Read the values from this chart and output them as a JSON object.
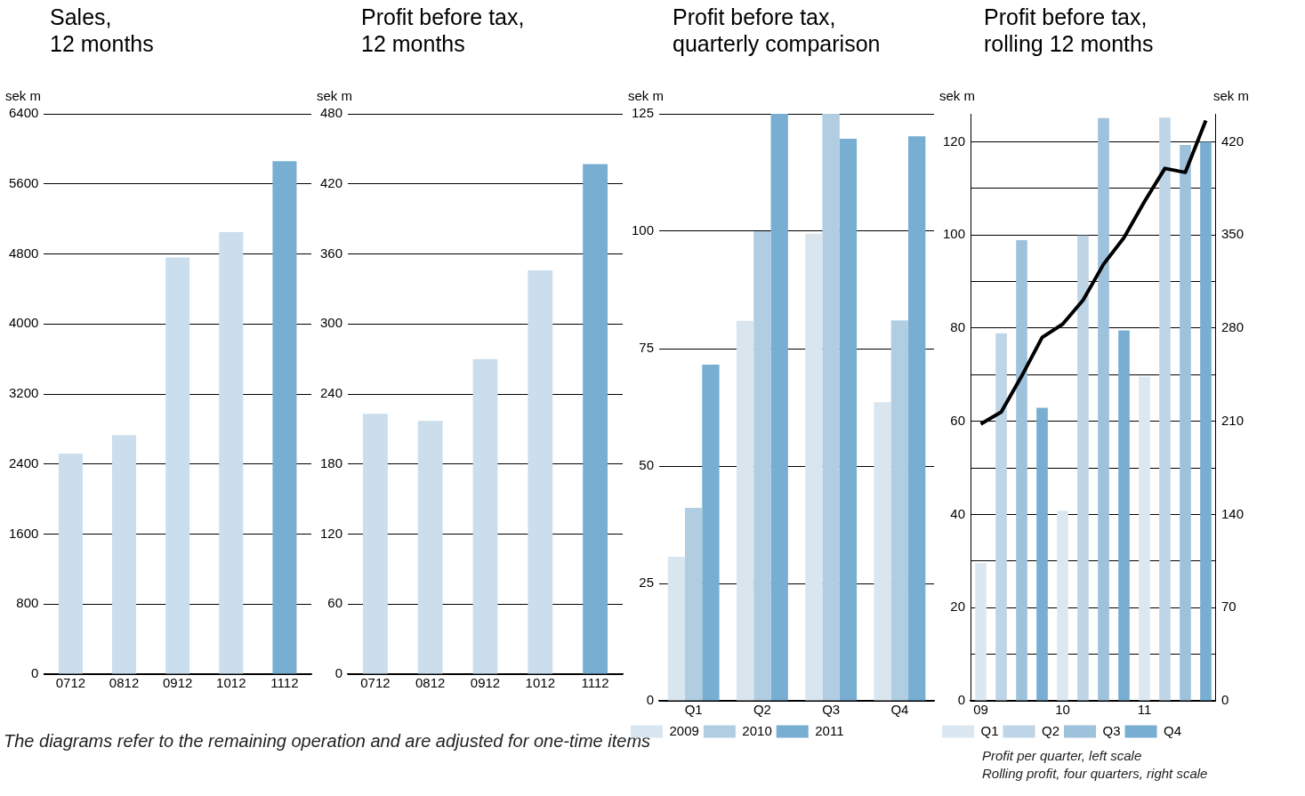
{
  "chart_data": [
    {
      "type": "bar",
      "title": "Sales, 12 months",
      "ylabel": "sek m",
      "categories": [
        "0712",
        "0812",
        "0912",
        "1012",
        "1112"
      ],
      "values": [
        2520,
        2730,
        4760,
        5050,
        5860
      ],
      "colors": [
        "#cadeed",
        "#cadeed",
        "#cadeed",
        "#cadeed",
        "#78aed1"
      ],
      "ylim": [
        0,
        6400
      ],
      "yticks": [
        0,
        800,
        1600,
        2400,
        3200,
        4000,
        4800,
        5600,
        6400
      ],
      "grid": "y",
      "annotations": [
        "The diagrams refer to the remaining operation and are adjusted for one-time items"
      ]
    },
    {
      "type": "bar",
      "title": "Profit before tax, 12 months",
      "ylabel": "sek m",
      "categories": [
        "0712",
        "0812",
        "0912",
        "1012",
        "1112"
      ],
      "values": [
        223,
        217,
        270,
        346,
        437
      ],
      "colors": [
        "#cadeed",
        "#cadeed",
        "#cadeed",
        "#cadeed",
        "#78aed1"
      ],
      "ylim": [
        0,
        480
      ],
      "yticks": [
        0,
        60,
        120,
        180,
        240,
        300,
        360,
        420,
        480
      ],
      "grid": "y"
    },
    {
      "type": "bar",
      "title": "Profit before tax, quarterly comparison",
      "ylabel": "sek m",
      "categories": [
        "Q1",
        "Q2",
        "Q3",
        "Q4"
      ],
      "series": [
        {
          "name": "2009",
          "color": "#d9e6f0",
          "values": [
            30.7,
            80.9,
            99.5,
            63.6
          ]
        },
        {
          "name": "2010",
          "color": "#b0cde2",
          "values": [
            41.1,
            100,
            125,
            81
          ]
        },
        {
          "name": "2011",
          "color": "#78aed1",
          "values": [
            71.6,
            125,
            119.7,
            120.2
          ]
        }
      ],
      "ylim": [
        0,
        125
      ],
      "yticks": [
        0,
        25,
        50,
        75,
        100,
        125
      ],
      "grid": "y",
      "legend": "bottom left"
    },
    {
      "type": "bar",
      "title": "Profit before tax, rolling 12 months",
      "ylabel": "sek m",
      "y2label": "sek m",
      "categories": [
        "09",
        null,
        null,
        null,
        "10",
        null,
        null,
        null,
        "11",
        null,
        null,
        null
      ],
      "series": [
        {
          "name": "Q1",
          "color": "#dce8f1",
          "values": [
            29.6,
            null,
            null,
            null,
            40.8,
            null,
            null,
            null,
            69.6,
            null,
            null,
            null
          ]
        },
        {
          "name": "Q2",
          "color": "#bed5e7",
          "values": [
            null,
            78.9,
            null,
            null,
            null,
            99.9,
            null,
            null,
            null,
            125.2,
            null,
            null
          ]
        },
        {
          "name": "Q3",
          "color": "#9ec2dc",
          "values": [
            null,
            null,
            98.9,
            null,
            null,
            null,
            125.1,
            null,
            null,
            null,
            119.3,
            null
          ]
        },
        {
          "name": "Q4",
          "color": "#78aed1",
          "values": [
            null,
            null,
            null,
            62.9,
            null,
            null,
            null,
            79.5,
            null,
            null,
            null,
            120
          ]
        },
        {
          "type": "line",
          "axis": "y2",
          "color": "#000000",
          "values": [
            208,
            217,
            244,
            273,
            283,
            301,
            328,
            348,
            375,
            400,
            397,
            436
          ]
        }
      ],
      "ylim": [
        0,
        126
      ],
      "yticks": [
        0,
        {
          "value": 10,
          "label": null
        },
        20,
        {
          "value": 30,
          "label": null
        },
        40,
        {
          "value": 50,
          "label": null
        },
        60,
        {
          "value": 70,
          "label": null
        },
        80,
        {
          "value": 90,
          "label": null
        },
        100,
        {
          "value": 110,
          "label": null
        },
        120
      ],
      "y2lim": [
        0,
        441
      ],
      "y2ticks": [
        0,
        70,
        140,
        210,
        280,
        350,
        420
      ],
      "grid": "y",
      "legend": "bottom left",
      "marker": "none",
      "line_style": "solid",
      "annotations": [
        "Profit per quarter, left scale",
        "Rolling profit, four quarters, right scale"
      ]
    }
  ]
}
